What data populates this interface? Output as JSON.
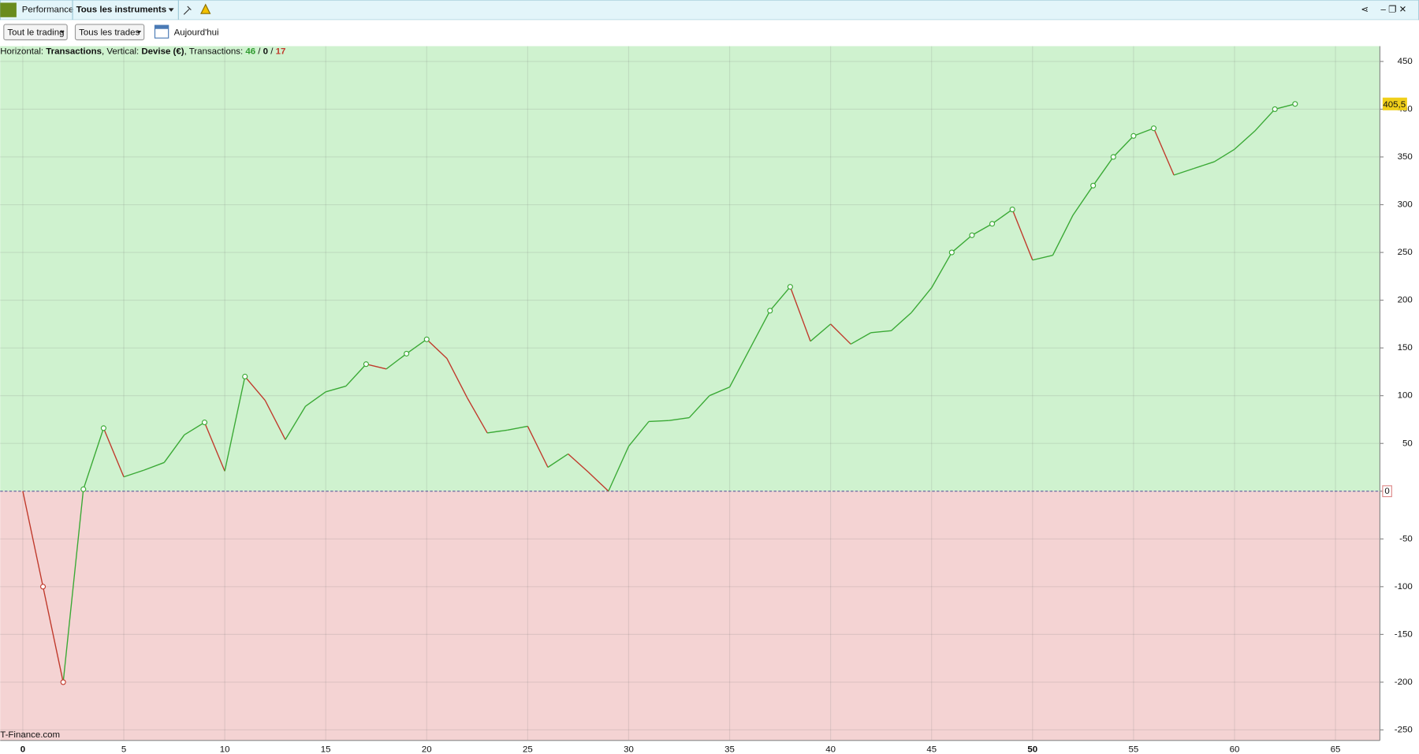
{
  "toolbar": {
    "tab": "Performance",
    "instruments": "Tous les instruments",
    "trading": "Tout le trading",
    "trades": "Tous les trades",
    "date": "Aujourd'hui"
  },
  "info": {
    "h_label": "Horizontal:",
    "h_value": "Transactions",
    "v_label": ", Vertical:",
    "v_value": "Devise (€)",
    "t_label": ", Transactions:",
    "wins": "46",
    "sep1": "/",
    "even": "0",
    "sep2": "/",
    "losses": "17"
  },
  "watermark": "T-Finance.com",
  "chart_data": {
    "type": "line",
    "x": [
      0,
      1,
      2,
      3,
      4,
      5,
      6,
      7,
      8,
      9,
      10,
      11,
      12,
      13,
      14,
      15,
      16,
      17,
      18,
      19,
      20,
      21,
      22,
      23,
      24,
      25,
      26,
      27,
      28,
      29,
      30,
      31,
      32,
      33,
      34,
      35,
      36,
      37,
      38,
      39,
      40,
      41,
      42,
      43,
      44,
      45,
      46,
      47,
      48,
      49,
      50,
      51,
      52,
      53,
      54,
      55,
      56,
      57,
      58,
      59,
      60,
      61,
      62,
      63
    ],
    "values": [
      0,
      -100,
      -200,
      2,
      66,
      15,
      22,
      30,
      59,
      72,
      21,
      120,
      95,
      54,
      89,
      104,
      110,
      133,
      128,
      144,
      159,
      139,
      98,
      61,
      64,
      68,
      25,
      39,
      20,
      0,
      47,
      73,
      74,
      77,
      100,
      109,
      149,
      189,
      214,
      157,
      175,
      154,
      166,
      168,
      187,
      213,
      250,
      268,
      280,
      295,
      242,
      247,
      289,
      320,
      350,
      372,
      380,
      331,
      338,
      345,
      358,
      377,
      400,
      405.5
    ],
    "last_value_label": "405,5",
    "markers": [
      1,
      2,
      3,
      4,
      9,
      11,
      17,
      19,
      20,
      37,
      38,
      46,
      47,
      48,
      49,
      53,
      54,
      55,
      56,
      62,
      63
    ],
    "up_color": "#3aa935",
    "down_color": "#c0392b",
    "positive_fill": "#cff2cf",
    "negative_fill": "#f4d3d3",
    "xlim": [
      -1.12,
      67.2
    ],
    "ylim": [
      -261,
      466
    ],
    "xticks": [
      0,
      5,
      10,
      15,
      20,
      25,
      30,
      35,
      40,
      45,
      50,
      55,
      60,
      65
    ],
    "yticks": [
      -250,
      -200,
      -150,
      -100,
      -50,
      0,
      50,
      100,
      150,
      200,
      250,
      300,
      350,
      400,
      450
    ],
    "grid": true
  }
}
